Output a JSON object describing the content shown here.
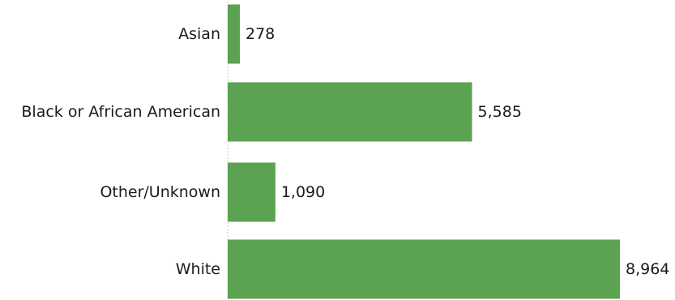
{
  "chart_data": {
    "type": "bar",
    "orientation": "horizontal",
    "categories": [
      "Asian",
      "Black or African American",
      "Other/Unknown",
      "White"
    ],
    "values": [
      278,
      5585,
      1090,
      8964
    ],
    "value_labels": [
      "278",
      "5,585",
      "1,090",
      "8,964"
    ],
    "title": "",
    "xlabel": "",
    "ylabel": "",
    "xlim": [
      0,
      8964
    ],
    "grid": false,
    "bar_color": "#5ba352",
    "axis_line_color": "#c8c8c8"
  }
}
